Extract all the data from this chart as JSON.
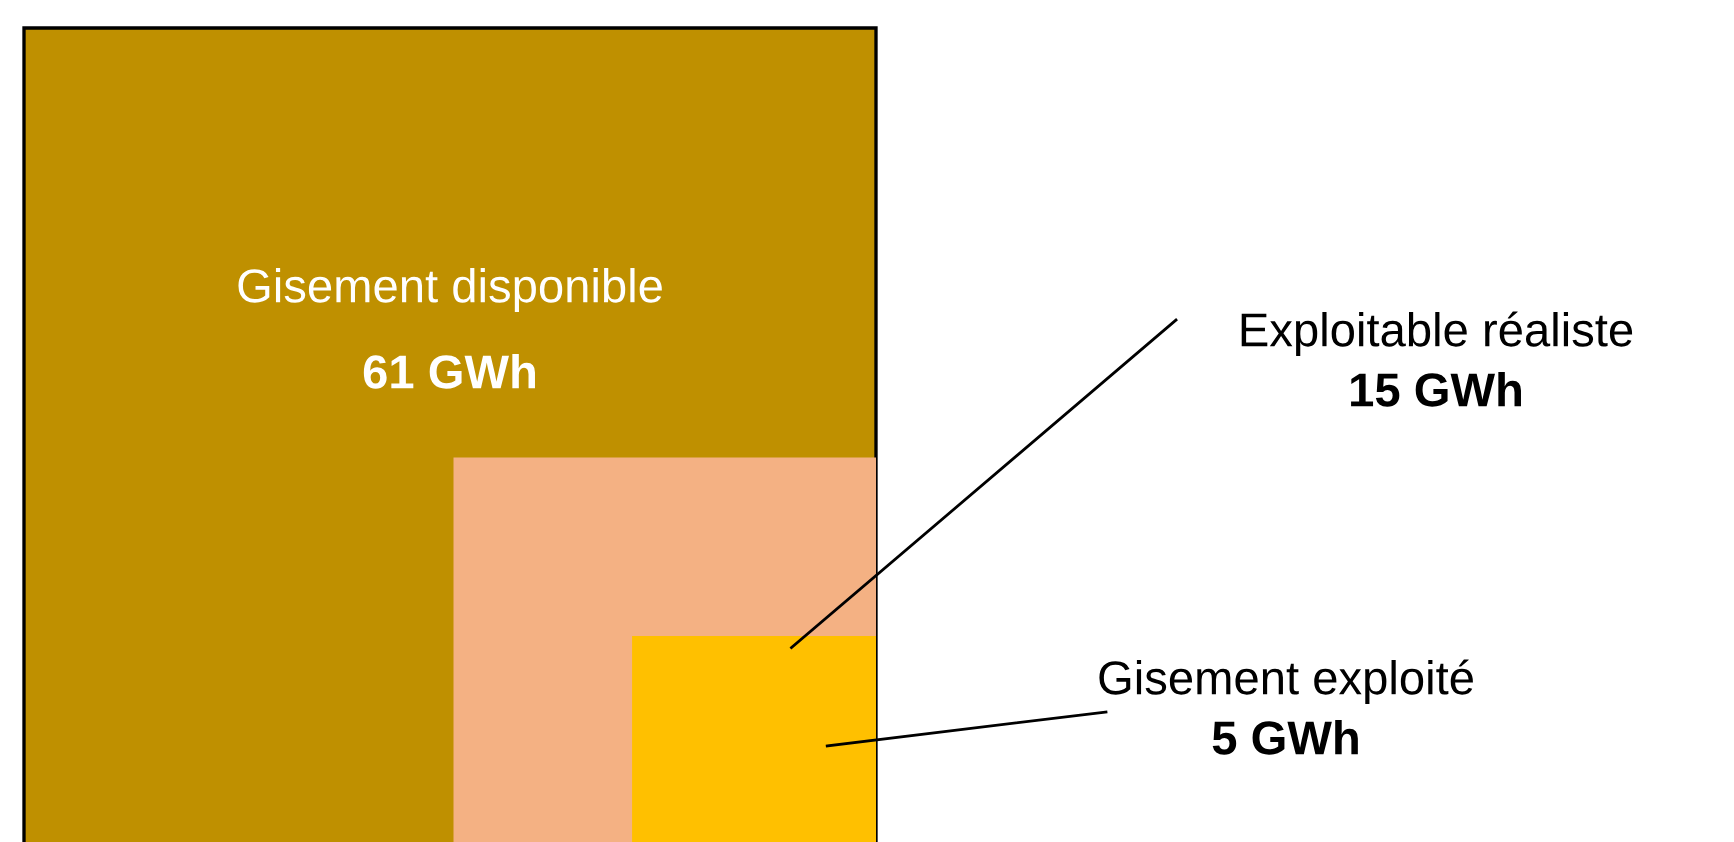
{
  "chart_data": {
    "type": "other",
    "categories": [
      "Gisement disponible",
      "Exploitable réaliste",
      "Gisement exploité"
    ],
    "values": [
      61,
      15,
      5
    ],
    "value_labels": [
      "61 GWh",
      "15 GWh",
      "5 GWh"
    ],
    "colors": [
      "#bf9000",
      "#f4b183",
      "#ffc000"
    ]
  }
}
